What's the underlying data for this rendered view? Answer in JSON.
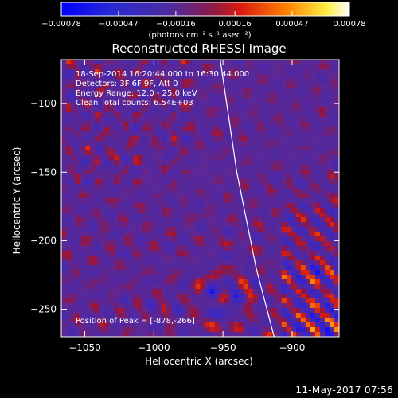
{
  "chart_data": {
    "type": "heatmap",
    "title": "Reconstructed RHESSI Image",
    "xlabel": "Heliocentric X (arcsec)",
    "ylabel": "Heliocentric Y (arcsec)",
    "xlim": [
      -1067,
      -866
    ],
    "ylim": [
      -270,
      -68
    ],
    "x_ticks": [
      -1050,
      -1000,
      -950,
      -900
    ],
    "x_tick_labels": [
      "−1050",
      "−1000",
      "−950",
      "−900"
    ],
    "y_ticks": [
      -100,
      -150,
      -200,
      -250
    ],
    "y_tick_labels": [
      "−100",
      "−150",
      "−200",
      "−250"
    ],
    "peak": [
      -878,
      -266
    ],
    "colorbar": {
      "range": [
        -0.00078,
        0.00078
      ],
      "ticks": [
        -0.00078,
        -0.00047,
        -0.00016,
        0.00016,
        0.00047,
        0.00078
      ],
      "tick_labels": [
        "−0.00078",
        "−0.00047",
        "−0.00016",
        "0.00016",
        "0.00047",
        "0.00078"
      ],
      "colors": [
        "#0000ff",
        "#3a1a9a",
        "#5a2a9a",
        "#cc1a1a",
        "#ff7a00",
        "#ffff66",
        "#ffffff"
      ]
    },
    "limb_curve": [
      [
        -952,
        -68
      ],
      [
        -940,
        -150
      ],
      [
        -926,
        -220
      ],
      [
        -913,
        -270
      ]
    ],
    "annotations": [
      "18-Sep-2014 16:20:44.000 to 16:30:44.000",
      "Detectors: 3F 6F 9F, Att 0",
      "Energy Range: 12.0 - 25.0 keV",
      "Clean     Total counts: 6.54E+03",
      "Position of Peak = [-878,-266]"
    ]
  },
  "colorbar_unit": "(photons cm⁻² s⁻¹ asec⁻²)",
  "footer": {
    "timestamp": "11-May-2017 07:56"
  }
}
